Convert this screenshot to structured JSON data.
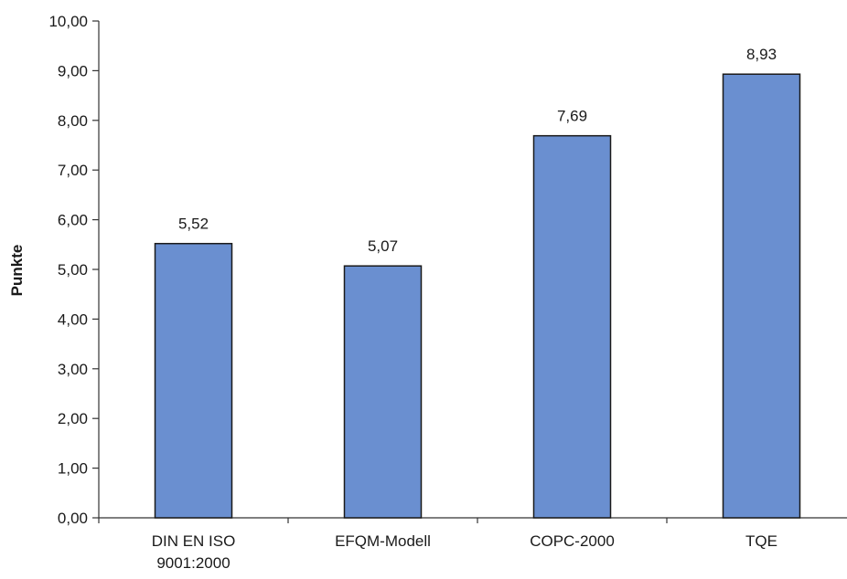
{
  "chart_data": {
    "type": "bar",
    "title": "",
    "xlabel": "",
    "ylabel": "Punkte",
    "categories": [
      [
        "DIN EN ISO",
        "9001:2000"
      ],
      [
        "EFQM-Modell"
      ],
      [
        "COPC-2000"
      ],
      [
        "TQE"
      ]
    ],
    "values": [
      5.52,
      5.07,
      7.69,
      8.93
    ],
    "value_labels": [
      "5,52",
      "5,07",
      "7,69",
      "8,93"
    ],
    "ylim": [
      0,
      10
    ],
    "yticks": [
      0,
      1,
      2,
      3,
      4,
      5,
      6,
      7,
      8,
      9,
      10
    ],
    "ytick_labels": [
      "0,00",
      "1,00",
      "2,00",
      "3,00",
      "4,00",
      "5,00",
      "6,00",
      "7,00",
      "8,00",
      "9,00",
      "10,00"
    ],
    "grid": false,
    "legend": "none",
    "bar_color": "#6a8fd0",
    "bar_edge_color": "#1a1a1a"
  }
}
